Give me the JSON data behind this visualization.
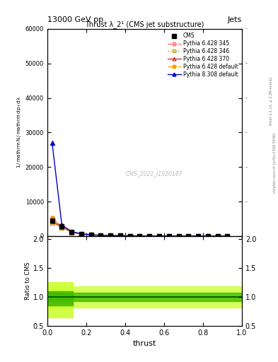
{
  "title_top": "13000 GeV pp",
  "title_right": "Jets",
  "plot_title": "Thrust λ_2¹ (CMS jet substructure)",
  "xlabel": "thrust",
  "watermark": "CMS_2021_I1920187",
  "right_label_top": "Rivet 3.1.10, ≥ 3.3M events",
  "right_label_bot": "mcplots.cern.ch [arXiv:1306.3436]",
  "series": [
    {
      "label": "CMS",
      "color": "#000000",
      "marker": "s",
      "markersize": 5,
      "markerfacecolor": "#000000",
      "linestyle": "none",
      "x": [
        0.025,
        0.075,
        0.125,
        0.175,
        0.225,
        0.275,
        0.325,
        0.375,
        0.425,
        0.475,
        0.525,
        0.575,
        0.625,
        0.675,
        0.725,
        0.775,
        0.825,
        0.875,
        0.925
      ],
      "y": [
        4500,
        2800,
        1200,
        600,
        350,
        200,
        130,
        90,
        60,
        40,
        25,
        18,
        14,
        10,
        8,
        5,
        3,
        2,
        1
      ]
    },
    {
      "label": "Pythia 6.428 345",
      "color": "#ff6666",
      "marker": "o",
      "markersize": 4,
      "markerfacecolor": "none",
      "linestyle": "--",
      "x": [
        0.025,
        0.075,
        0.125,
        0.175,
        0.225,
        0.275,
        0.325,
        0.375,
        0.425,
        0.475,
        0.525,
        0.575,
        0.625,
        0.675,
        0.725,
        0.775,
        0.825,
        0.875,
        0.925
      ],
      "y": [
        4800,
        2700,
        1150,
        590,
        340,
        195,
        128,
        88,
        58,
        38,
        24,
        17,
        13,
        9,
        7,
        4.5,
        3,
        1.8,
        0.9
      ]
    },
    {
      "label": "Pythia 6.428 346",
      "color": "#bbaa00",
      "marker": "s",
      "markersize": 4,
      "markerfacecolor": "none",
      "linestyle": ":",
      "x": [
        0.025,
        0.075,
        0.125,
        0.175,
        0.225,
        0.275,
        0.325,
        0.375,
        0.425,
        0.475,
        0.525,
        0.575,
        0.625,
        0.675,
        0.725,
        0.775,
        0.825,
        0.875,
        0.925
      ],
      "y": [
        3800,
        2500,
        1100,
        560,
        320,
        185,
        122,
        84,
        55,
        36,
        22,
        16,
        12,
        8.5,
        6.5,
        4,
        2.5,
        1.6,
        0.8
      ]
    },
    {
      "label": "Pythia 6.428 370",
      "color": "#cc3333",
      "marker": "^",
      "markersize": 4,
      "markerfacecolor": "none",
      "linestyle": "-",
      "x": [
        0.025,
        0.075,
        0.125,
        0.175,
        0.225,
        0.275,
        0.325,
        0.375,
        0.425,
        0.475,
        0.525,
        0.575,
        0.625,
        0.675,
        0.725,
        0.775,
        0.825,
        0.875,
        0.925
      ],
      "y": [
        4200,
        2600,
        1150,
        575,
        335,
        190,
        125,
        86,
        57,
        37,
        23,
        16.5,
        12.5,
        9,
        7,
        4.5,
        2.8,
        1.7,
        0.85
      ]
    },
    {
      "label": "Pythia 6.428 default",
      "color": "#ff9900",
      "marker": "o",
      "markersize": 4,
      "markerfacecolor": "#ff9900",
      "linestyle": "-.",
      "x": [
        0.025,
        0.075,
        0.125,
        0.175,
        0.225,
        0.275,
        0.325,
        0.375,
        0.425,
        0.475,
        0.525,
        0.575,
        0.625,
        0.675,
        0.725,
        0.775,
        0.825,
        0.875,
        0.925
      ],
      "y": [
        5200,
        2900,
        1200,
        605,
        355,
        205,
        132,
        91,
        61,
        41,
        26,
        18.5,
        14,
        10,
        8,
        5.5,
        3.5,
        2.2,
        1.1
      ]
    },
    {
      "label": "Pythia 8.308 default",
      "color": "#0000cc",
      "marker": "^",
      "markersize": 4,
      "markerfacecolor": "#0000cc",
      "linestyle": "-",
      "x": [
        0.025,
        0.075,
        0.125,
        0.175,
        0.225,
        0.275,
        0.325,
        0.375,
        0.425,
        0.475,
        0.525,
        0.575,
        0.625,
        0.675,
        0.725,
        0.775,
        0.825,
        0.875,
        0.925
      ],
      "y": [
        27000,
        3200,
        1300,
        650,
        370,
        210,
        135,
        92,
        62,
        42,
        27,
        19,
        14.5,
        10.5,
        8.5,
        6,
        4,
        2.5,
        1.2
      ]
    }
  ],
  "ylim_main": [
    0,
    60000
  ],
  "ylim_ratio": [
    0.5,
    2.05
  ],
  "xlim": [
    0.0,
    1.0
  ],
  "yticks_main": [
    0,
    10000,
    20000,
    30000,
    40000,
    50000,
    60000
  ],
  "ratio_yticks": [
    0.5,
    1.0,
    1.5,
    2.0
  ],
  "ratio_band_yellow": "#ccff33",
  "ratio_band_green": "#44bb00",
  "ratio_line_color": "#006600"
}
